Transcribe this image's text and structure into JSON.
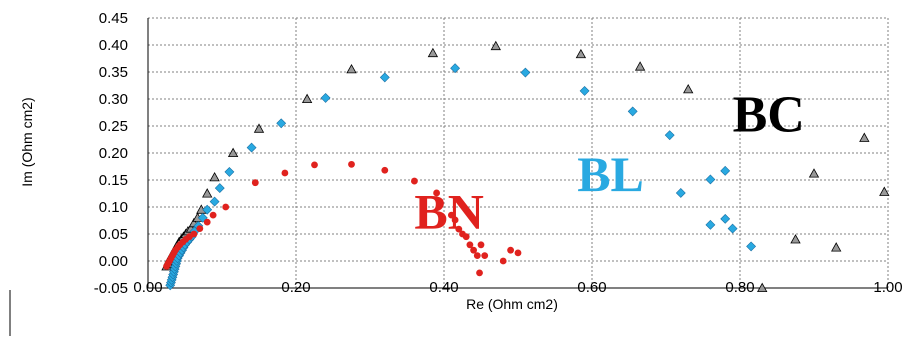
{
  "chart_data": {
    "type": "scatter",
    "title": "",
    "xlabel": "Re (Ohm cm2)",
    "ylabel": "Im (Ohm cm2)",
    "xlim": [
      0,
      1.0
    ],
    "ylim": [
      -0.05,
      0.45
    ],
    "grid": "dashed",
    "x_ticks": [
      "0.00",
      "0.20",
      "0.40",
      "0.60",
      "0.80",
      "1.00"
    ],
    "y_ticks": [
      "-0.05",
      "0.00",
      "0.05",
      "0.10",
      "0.15",
      "0.20",
      "0.25",
      "0.30",
      "0.35",
      "0.40",
      "0.45"
    ],
    "annotations": [
      {
        "text": "BC",
        "x": 0.79,
        "y": 0.24,
        "color": "#000000"
      },
      {
        "text": "BL",
        "x": 0.58,
        "y": 0.13,
        "color": "#29a9e1"
      },
      {
        "text": "BN",
        "x": 0.36,
        "y": 0.06,
        "color": "#e0221e"
      }
    ],
    "series": [
      {
        "name": "BC",
        "marker": "triangle",
        "color": "#999999",
        "points": [
          [
            0.025,
            -0.01
          ],
          [
            0.027,
            -0.005
          ],
          [
            0.028,
            0.0
          ],
          [
            0.03,
            0.005
          ],
          [
            0.032,
            0.01
          ],
          [
            0.034,
            0.015
          ],
          [
            0.036,
            0.02
          ],
          [
            0.038,
            0.025
          ],
          [
            0.04,
            0.03
          ],
          [
            0.042,
            0.035
          ],
          [
            0.045,
            0.04
          ],
          [
            0.048,
            0.045
          ],
          [
            0.051,
            0.05
          ],
          [
            0.054,
            0.055
          ],
          [
            0.058,
            0.06
          ],
          [
            0.062,
            0.07
          ],
          [
            0.067,
            0.08
          ],
          [
            0.072,
            0.095
          ],
          [
            0.08,
            0.125
          ],
          [
            0.09,
            0.155
          ],
          [
            0.115,
            0.2
          ],
          [
            0.15,
            0.245
          ],
          [
            0.215,
            0.3
          ],
          [
            0.275,
            0.355
          ],
          [
            0.385,
            0.385
          ],
          [
            0.47,
            0.398
          ],
          [
            0.585,
            0.383
          ],
          [
            0.665,
            0.36
          ],
          [
            0.73,
            0.318
          ],
          [
            0.968,
            0.228
          ],
          [
            0.9,
            0.162
          ],
          [
            0.995,
            0.128
          ],
          [
            0.875,
            0.04
          ],
          [
            0.93,
            0.025
          ],
          [
            0.83,
            -0.05
          ]
        ]
      },
      {
        "name": "BL",
        "marker": "diamond",
        "color": "#29a9e1",
        "points": [
          [
            0.03,
            -0.045
          ],
          [
            0.031,
            -0.04
          ],
          [
            0.032,
            -0.035
          ],
          [
            0.033,
            -0.03
          ],
          [
            0.034,
            -0.025
          ],
          [
            0.035,
            -0.02
          ],
          [
            0.036,
            -0.015
          ],
          [
            0.037,
            -0.01
          ],
          [
            0.038,
            -0.005
          ],
          [
            0.039,
            0.0
          ],
          [
            0.04,
            0.005
          ],
          [
            0.042,
            0.01
          ],
          [
            0.044,
            0.015
          ],
          [
            0.046,
            0.02
          ],
          [
            0.048,
            0.025
          ],
          [
            0.05,
            0.03
          ],
          [
            0.053,
            0.035
          ],
          [
            0.056,
            0.04
          ],
          [
            0.059,
            0.045
          ],
          [
            0.063,
            0.055
          ],
          [
            0.068,
            0.065
          ],
          [
            0.074,
            0.08
          ],
          [
            0.08,
            0.095
          ],
          [
            0.09,
            0.11
          ],
          [
            0.097,
            0.135
          ],
          [
            0.11,
            0.165
          ],
          [
            0.14,
            0.21
          ],
          [
            0.18,
            0.255
          ],
          [
            0.24,
            0.302
          ],
          [
            0.32,
            0.34
          ],
          [
            0.415,
            0.357
          ],
          [
            0.51,
            0.349
          ],
          [
            0.59,
            0.315
          ],
          [
            0.655,
            0.277
          ],
          [
            0.705,
            0.233
          ],
          [
            0.72,
            0.126
          ],
          [
            0.76,
            0.151
          ],
          [
            0.78,
            0.167
          ],
          [
            0.76,
            0.067
          ],
          [
            0.78,
            0.078
          ],
          [
            0.79,
            0.06
          ],
          [
            0.815,
            0.027
          ]
        ]
      },
      {
        "name": "BN",
        "marker": "circle",
        "color": "#e0221e",
        "points": [
          [
            0.025,
            -0.01
          ],
          [
            0.027,
            -0.005
          ],
          [
            0.029,
            0.0
          ],
          [
            0.031,
            0.005
          ],
          [
            0.033,
            0.01
          ],
          [
            0.035,
            0.015
          ],
          [
            0.037,
            0.02
          ],
          [
            0.04,
            0.025
          ],
          [
            0.043,
            0.03
          ],
          [
            0.047,
            0.035
          ],
          [
            0.051,
            0.04
          ],
          [
            0.056,
            0.045
          ],
          [
            0.062,
            0.05
          ],
          [
            0.07,
            0.06
          ],
          [
            0.08,
            0.072
          ],
          [
            0.088,
            0.085
          ],
          [
            0.105,
            0.1
          ],
          [
            0.145,
            0.145
          ],
          [
            0.185,
            0.163
          ],
          [
            0.225,
            0.178
          ],
          [
            0.275,
            0.179
          ],
          [
            0.32,
            0.168
          ],
          [
            0.36,
            0.148
          ],
          [
            0.39,
            0.126
          ],
          [
            0.41,
            0.085
          ],
          [
            0.415,
            0.076
          ],
          [
            0.42,
            0.059
          ],
          [
            0.425,
            0.05
          ],
          [
            0.43,
            0.045
          ],
          [
            0.435,
            0.03
          ],
          [
            0.44,
            0.02
          ],
          [
            0.445,
            0.01
          ],
          [
            0.45,
            0.03
          ],
          [
            0.448,
            -0.022
          ],
          [
            0.455,
            0.01
          ],
          [
            0.49,
            0.02
          ],
          [
            0.5,
            0.015
          ],
          [
            0.48,
            0.0
          ]
        ]
      }
    ]
  }
}
